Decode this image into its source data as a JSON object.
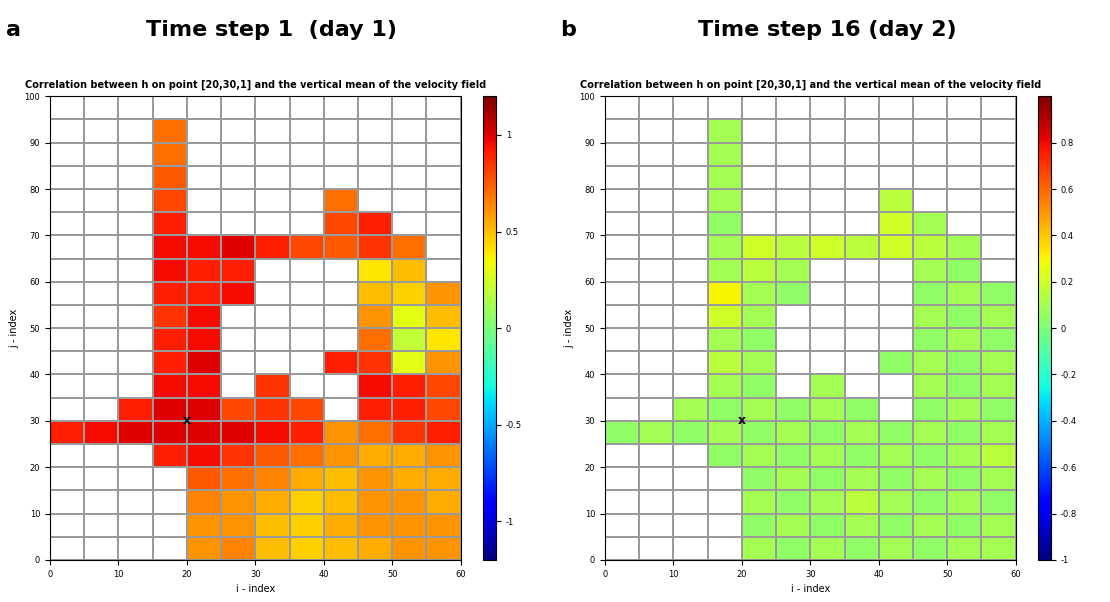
{
  "chart_data": [
    {
      "type": "heatmap",
      "panel": "a",
      "heading": "Time step 1  (day 1)",
      "title": "Correlation between h on point [20,30,1] and the vertical mean of the velocity field",
      "x_label": "i - index",
      "y_label": "j - index",
      "xlim": [
        0,
        60
      ],
      "xticks": [
        0,
        10,
        20,
        30,
        40,
        50,
        60
      ],
      "ylim": [
        0,
        100
      ],
      "yticks": [
        0,
        10,
        20,
        30,
        40,
        50,
        60,
        70,
        80,
        90,
        100
      ],
      "point": {
        "i": 20,
        "j": 30,
        "label": "x"
      },
      "i_edges": [
        0,
        5,
        10,
        15,
        20,
        25,
        30,
        35,
        40,
        45,
        50,
        55,
        60
      ],
      "j_edges": [
        0,
        5,
        10,
        15,
        20,
        25,
        30,
        35,
        40,
        45,
        50,
        55,
        60,
        65,
        70,
        75,
        80,
        85,
        90,
        95,
        100
      ],
      "cells": [
        [
          null,
          null,
          null,
          null,
          0.6,
          0.65,
          0.5,
          0.45,
          0.5,
          0.55,
          0.6,
          0.6
        ],
        [
          null,
          null,
          null,
          null,
          0.6,
          0.6,
          0.5,
          0.45,
          0.55,
          0.6,
          0.6,
          0.6
        ],
        [
          null,
          null,
          null,
          null,
          0.65,
          0.6,
          0.55,
          0.45,
          0.5,
          0.6,
          0.6,
          0.55
        ],
        [
          null,
          null,
          null,
          null,
          0.75,
          0.7,
          0.65,
          0.55,
          0.5,
          0.6,
          0.55,
          0.55
        ],
        [
          null,
          null,
          null,
          0.9,
          0.95,
          0.85,
          0.75,
          0.7,
          0.6,
          0.55,
          0.55,
          0.6
        ],
        [
          0.9,
          0.95,
          1.0,
          1.0,
          1.0,
          1.0,
          0.95,
          0.9,
          0.6,
          0.7,
          0.85,
          0.9
        ],
        [
          null,
          null,
          0.9,
          1.0,
          1.0,
          0.8,
          0.85,
          0.8,
          null,
          0.9,
          0.9,
          0.8
        ],
        [
          null,
          null,
          null,
          0.95,
          0.95,
          null,
          0.85,
          null,
          null,
          0.95,
          0.9,
          0.8
        ],
        [
          null,
          null,
          null,
          0.9,
          1.0,
          null,
          null,
          null,
          0.9,
          0.85,
          0.3,
          0.6
        ],
        [
          null,
          null,
          null,
          0.9,
          0.95,
          null,
          null,
          null,
          null,
          0.7,
          0.2,
          0.4
        ],
        [
          null,
          null,
          null,
          0.85,
          0.95,
          null,
          null,
          null,
          null,
          0.6,
          0.3,
          0.5
        ],
        [
          null,
          null,
          null,
          0.9,
          0.9,
          0.95,
          null,
          null,
          null,
          0.5,
          0.45,
          0.6
        ],
        [
          null,
          null,
          null,
          0.95,
          0.9,
          0.9,
          null,
          null,
          null,
          0.4,
          0.5,
          null
        ],
        [
          null,
          null,
          null,
          0.95,
          0.95,
          1.0,
          0.9,
          0.8,
          0.75,
          0.85,
          0.7,
          null
        ],
        [
          null,
          null,
          null,
          0.9,
          null,
          null,
          null,
          null,
          0.8,
          0.9,
          null,
          null
        ],
        [
          null,
          null,
          null,
          0.8,
          null,
          null,
          null,
          null,
          0.7,
          null,
          null,
          null
        ],
        [
          null,
          null,
          null,
          0.75,
          null,
          null,
          null,
          null,
          null,
          null,
          null,
          null
        ],
        [
          null,
          null,
          null,
          0.7,
          null,
          null,
          null,
          null,
          null,
          null,
          null,
          null
        ],
        [
          null,
          null,
          null,
          0.7,
          null,
          null,
          null,
          null,
          null,
          null,
          null,
          null
        ],
        [
          null,
          null,
          null,
          null,
          null,
          null,
          null,
          null,
          null,
          null,
          null,
          null
        ]
      ],
      "colorbar_lim": [
        -1.2,
        1.2
      ],
      "colorbar_ticks": [
        -1,
        -0.5,
        0,
        0.5,
        1
      ]
    },
    {
      "type": "heatmap",
      "panel": "b",
      "heading": "Time step 16 (day 2)",
      "title": "Correlation between h on point [20,30,1] and the vertical mean of the velocity field",
      "x_label": "i - index",
      "y_label": "j - index",
      "xlim": [
        0,
        60
      ],
      "xticks": [
        0,
        10,
        20,
        30,
        40,
        50,
        60
      ],
      "ylim": [
        0,
        100
      ],
      "yticks": [
        0,
        10,
        20,
        30,
        40,
        50,
        60,
        70,
        80,
        90,
        100
      ],
      "point": {
        "i": 20,
        "j": 30,
        "label": "x"
      },
      "i_edges": [
        0,
        5,
        10,
        15,
        20,
        25,
        30,
        35,
        40,
        45,
        50,
        55,
        60
      ],
      "j_edges": [
        0,
        5,
        10,
        15,
        20,
        25,
        30,
        35,
        40,
        45,
        50,
        55,
        60,
        65,
        70,
        75,
        80,
        85,
        90,
        95,
        100
      ],
      "cells": [
        [
          null,
          null,
          null,
          null,
          0.1,
          0.05,
          0.1,
          0.05,
          0.1,
          0.05,
          0.1,
          0.1
        ],
        [
          null,
          null,
          null,
          null,
          0.05,
          0.1,
          0.05,
          0.1,
          0.05,
          0.1,
          0.05,
          0.1
        ],
        [
          null,
          null,
          null,
          null,
          0.1,
          0.05,
          0.1,
          0.15,
          0.1,
          0.05,
          0.1,
          0.05
        ],
        [
          null,
          null,
          null,
          null,
          0.05,
          0.1,
          0.05,
          0.1,
          0.05,
          0.1,
          0.05,
          0.1
        ],
        [
          null,
          null,
          null,
          0.05,
          0.1,
          0.05,
          0.1,
          0.05,
          0.1,
          0.05,
          0.1,
          0.15
        ],
        [
          0.05,
          0.1,
          0.05,
          0.1,
          0.05,
          0.1,
          0.05,
          0.1,
          0.05,
          0.1,
          0.05,
          0.1
        ],
        [
          null,
          null,
          0.1,
          0.05,
          0.1,
          0.05,
          0.1,
          0.05,
          null,
          0.05,
          0.1,
          0.05
        ],
        [
          null,
          null,
          null,
          0.1,
          0.05,
          null,
          0.1,
          null,
          null,
          0.1,
          0.05,
          0.1
        ],
        [
          null,
          null,
          null,
          0.15,
          0.1,
          null,
          null,
          null,
          0.05,
          0.1,
          0.05,
          0.1
        ],
        [
          null,
          null,
          null,
          0.1,
          0.05,
          null,
          null,
          null,
          null,
          0.05,
          0.1,
          0.05
        ],
        [
          null,
          null,
          null,
          0.2,
          0.1,
          null,
          null,
          null,
          null,
          0.1,
          0.05,
          0.1
        ],
        [
          null,
          null,
          null,
          0.3,
          0.1,
          0.05,
          null,
          null,
          null,
          0.05,
          0.1,
          0.05
        ],
        [
          null,
          null,
          null,
          0.1,
          0.15,
          0.1,
          null,
          null,
          null,
          0.1,
          0.05,
          null
        ],
        [
          null,
          null,
          null,
          0.1,
          0.2,
          0.15,
          0.2,
          0.15,
          0.2,
          0.15,
          0.1,
          null
        ],
        [
          null,
          null,
          null,
          0.05,
          null,
          null,
          null,
          null,
          0.2,
          0.1,
          null,
          null
        ],
        [
          null,
          null,
          null,
          0.1,
          null,
          null,
          null,
          null,
          0.15,
          null,
          null,
          null
        ],
        [
          null,
          null,
          null,
          0.1,
          null,
          null,
          null,
          null,
          null,
          null,
          null,
          null
        ],
        [
          null,
          null,
          null,
          0.1,
          null,
          null,
          null,
          null,
          null,
          null,
          null,
          null
        ],
        [
          null,
          null,
          null,
          0.1,
          null,
          null,
          null,
          null,
          null,
          null,
          null,
          null
        ],
        [
          null,
          null,
          null,
          null,
          null,
          null,
          null,
          null,
          null,
          null,
          null,
          null
        ]
      ],
      "colorbar_lim": [
        -1,
        1
      ],
      "colorbar_ticks": [
        -1,
        -0.8,
        -0.6,
        -0.4,
        -0.2,
        0,
        0.2,
        0.4,
        0.6,
        0.8
      ]
    }
  ]
}
